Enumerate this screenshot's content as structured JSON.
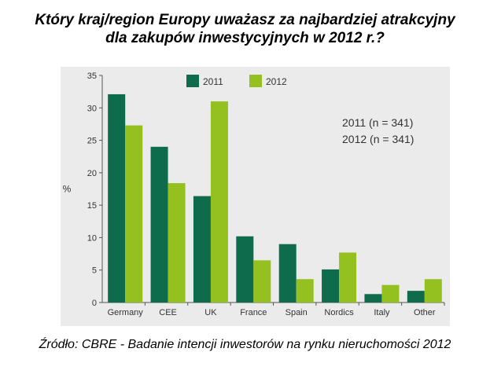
{
  "title_line1": "Który kraj/region Europy uważasz za najbardziej atrakcyjny",
  "title_line2": "dla zakupów inwestycyjnych w 2012 r.?",
  "source": "Źródło: CBRE - Badanie intencji inwestorów na rynku nieruchomości 2012",
  "chart_data": {
    "type": "bar",
    "categories": [
      "Germany",
      "CEE",
      "UK",
      "France",
      "Spain",
      "Nordics",
      "Italy",
      "Other"
    ],
    "series": [
      {
        "name": "2011",
        "color": "#0e6b4c",
        "values": [
          32.1,
          24.0,
          16.4,
          10.2,
          9.0,
          5.1,
          1.3,
          1.8
        ]
      },
      {
        "name": "2012",
        "color": "#94c11f",
        "values": [
          27.3,
          18.4,
          31.0,
          6.5,
          3.6,
          7.7,
          2.7,
          3.6
        ]
      }
    ],
    "ylabel": "%",
    "ylim": [
      0,
      35
    ],
    "yticks": [
      0,
      5,
      10,
      15,
      20,
      25,
      30,
      35
    ],
    "annotations": [
      "2011 (n = 341)",
      "2012 (n = 341)"
    ]
  }
}
